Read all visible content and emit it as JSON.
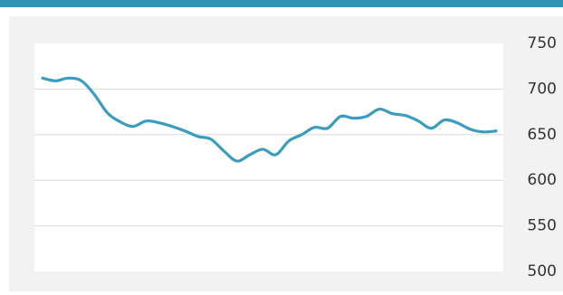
{
  "chart_data": {
    "type": "line",
    "categories": [
      null,
      null,
      null,
      null,
      null,
      null,
      null,
      null,
      null,
      null,
      null,
      null,
      null,
      null,
      null,
      null,
      null,
      null,
      null,
      null,
      null,
      null,
      null,
      null,
      null,
      null,
      null,
      null,
      null,
      null,
      null,
      null,
      null,
      null,
      null,
      null
    ],
    "series": [
      {
        "color": "#3a9dbf",
        "values": [
          712,
          709,
          712,
          709,
          694,
          674,
          664,
          659,
          665,
          663,
          659,
          654,
          648,
          645,
          632,
          621,
          628,
          634,
          628,
          643,
          650,
          658,
          657,
          670,
          668,
          670,
          678,
          673,
          671,
          665,
          657,
          666,
          663,
          656,
          653,
          654
        ]
      }
    ],
    "ylim": [
      500,
      750
    ],
    "yticks": [
      500,
      550,
      600,
      650,
      700,
      750
    ],
    "grid": true,
    "y_axis_side": "right"
  }
}
